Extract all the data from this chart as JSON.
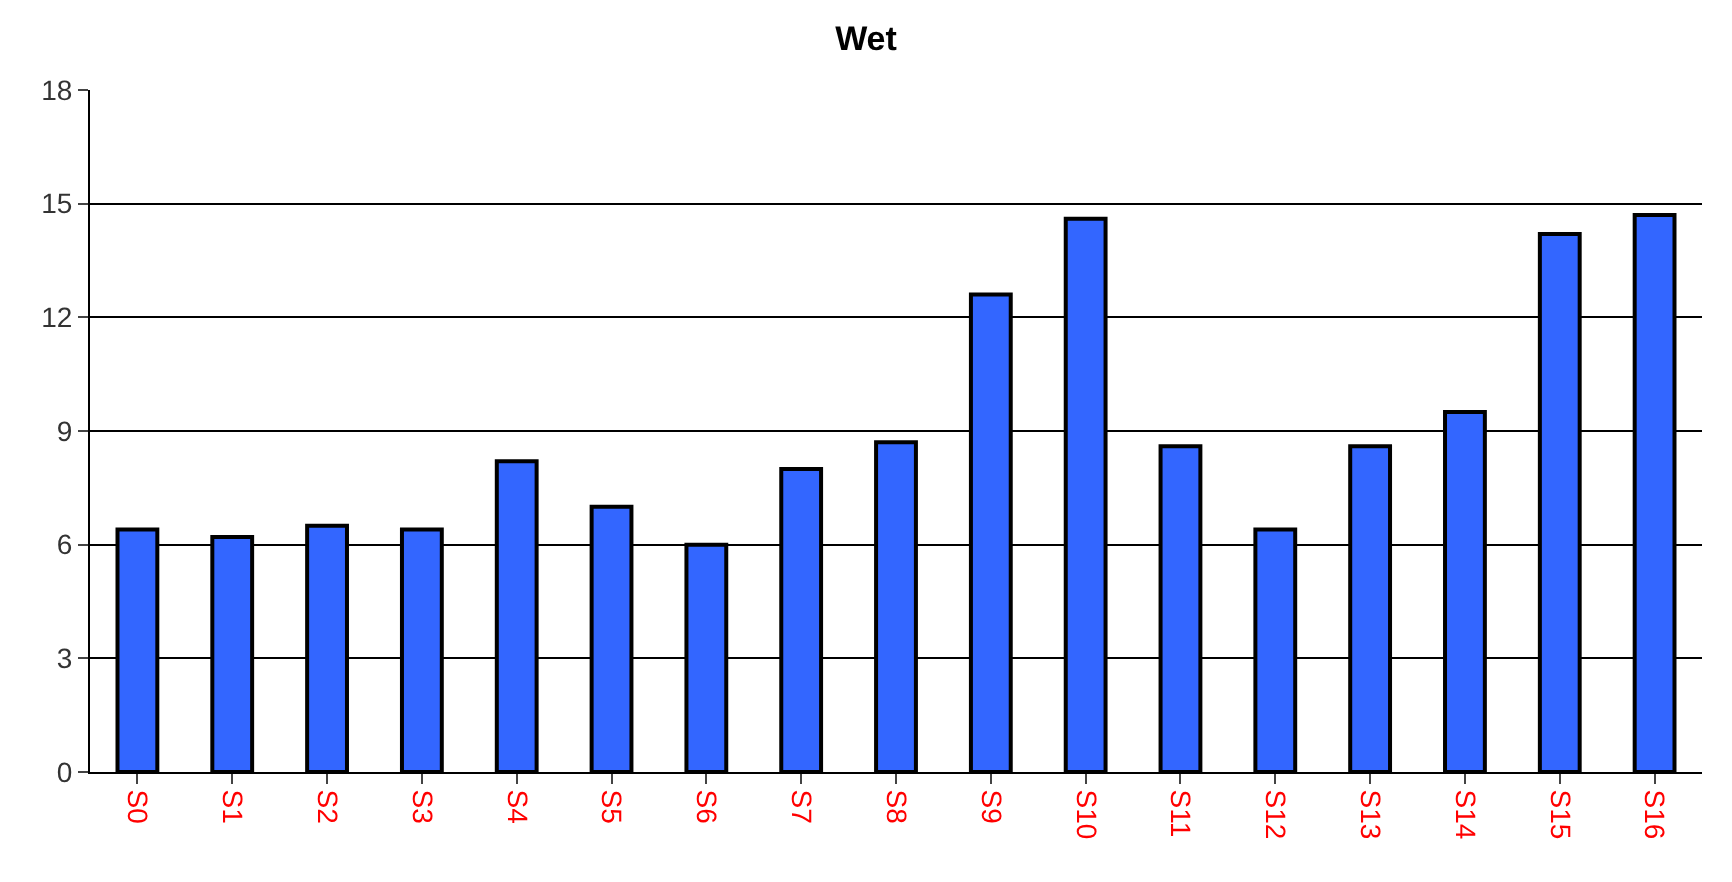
{
  "chart_data": {
    "type": "bar",
    "title": "Wet",
    "categories": [
      "S0",
      "S1",
      "S2",
      "S3",
      "S4",
      "S5",
      "S6",
      "S7",
      "S8",
      "S9",
      "S10",
      "S11",
      "S12",
      "S13",
      "S14",
      "S15",
      "S16"
    ],
    "values": [
      6.4,
      6.2,
      6.5,
      6.4,
      8.2,
      7.0,
      6.0,
      8.0,
      8.7,
      12.6,
      14.6,
      8.6,
      6.4,
      8.6,
      9.5,
      14.2,
      14.7
    ],
    "color": "#3366ff",
    "ylim": [
      0,
      18
    ],
    "yticks": [
      0,
      3,
      6,
      9,
      12,
      15,
      18
    ],
    "grid": "y"
  }
}
